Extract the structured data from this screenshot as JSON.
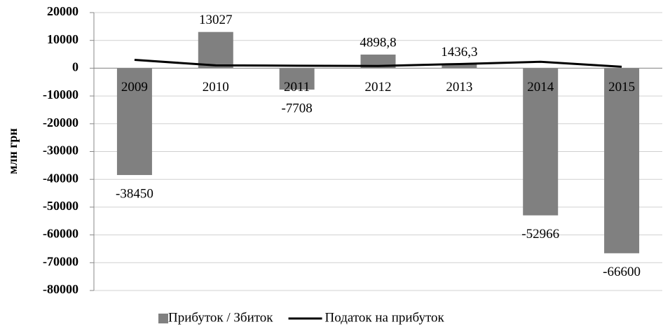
{
  "chart_data": {
    "type": "bar",
    "y_label": "млн грн",
    "categories": [
      "2009",
      "2010",
      "2011",
      "2012",
      "2013",
      "2014",
      "2015"
    ],
    "series": [
      {
        "name": "Прибуток / Збиток",
        "type": "bar",
        "color": "#808080",
        "values": [
          -38450,
          13027,
          -7708,
          4898.8,
          1436.3,
          -52966,
          -66600
        ],
        "value_labels": [
          "-38450",
          "13027",
          "-7708",
          "4898,8",
          "1436,3",
          "-52966",
          "-66600"
        ]
      },
      {
        "name": "Податок на прибуток",
        "type": "line",
        "color": "#000000",
        "values": [
          3000,
          1000,
          900,
          800,
          1500,
          2300,
          500
        ]
      }
    ],
    "ylim": [
      -80000,
      20000
    ],
    "yticks": [
      -80000,
      -70000,
      -60000,
      -50000,
      -40000,
      -30000,
      -20000,
      -10000,
      0,
      10000,
      20000
    ],
    "grid": true,
    "legend": "bottom"
  }
}
